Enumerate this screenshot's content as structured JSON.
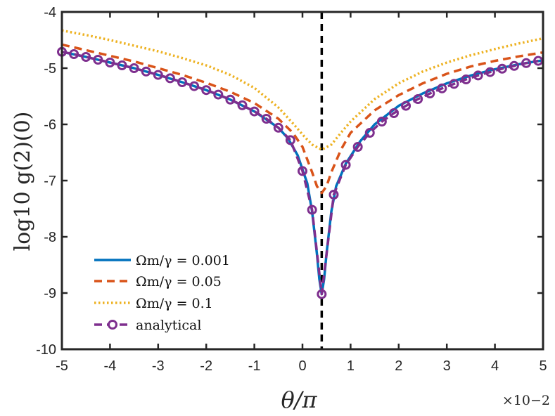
{
  "chart_data": {
    "type": "line",
    "title": "",
    "xlabel": "θ/π",
    "ylabel": "log10 g(2)(0)",
    "x_multiplier": "×10−2",
    "xlim": [
      -5,
      5
    ],
    "ylim": [
      -10,
      -4
    ],
    "xticks": [
      -5,
      -4,
      -3,
      -2,
      -1,
      0,
      1,
      2,
      3,
      4,
      5
    ],
    "yticks": [
      -10,
      -9,
      -8,
      -7,
      -6,
      -5,
      -4
    ],
    "xtick_labels": [
      "-5",
      "-4",
      "-3",
      "-2",
      "-1",
      "0",
      "1",
      "2",
      "3",
      "4",
      "5"
    ],
    "ytick_labels": [
      "-10",
      "-9",
      "-8",
      "-7",
      "-6",
      "-5",
      "-4"
    ],
    "grid": false,
    "legend_position": "bottom-left",
    "vline": {
      "x": 0.4,
      "style": "dashed",
      "color": "#000000"
    },
    "series": [
      {
        "name": "Ωm/γ = 0.001",
        "legend_label": "Ωm/γ = 0.001",
        "style": "solid",
        "color": "#0072BD",
        "x": [
          -5,
          -4.5,
          -4,
          -3.5,
          -3,
          -2.5,
          -2,
          -1.5,
          -1,
          -0.5,
          -0.3,
          -0.1,
          0.1,
          0.2,
          0.3,
          0.35,
          0.4,
          0.45,
          0.5,
          0.6,
          0.7,
          0.9,
          1.2,
          1.5,
          2,
          2.5,
          3,
          3.5,
          4,
          4.5,
          5
        ],
        "values": [
          -4.71,
          -4.8,
          -4.9,
          -5.0,
          -5.12,
          -5.25,
          -5.39,
          -5.56,
          -5.77,
          -6.06,
          -6.25,
          -6.55,
          -7.05,
          -7.55,
          -8.3,
          -8.75,
          -9.02,
          -8.75,
          -8.3,
          -7.55,
          -7.1,
          -6.7,
          -6.3,
          -6.0,
          -5.67,
          -5.45,
          -5.27,
          -5.13,
          -5.02,
          -4.93,
          -4.86
        ]
      },
      {
        "name": "Ωm/γ = 0.05",
        "legend_label": "Ωm/γ = 0.05",
        "style": "dashed",
        "color": "#D95319",
        "x": [
          -5,
          -4.5,
          -4,
          -3.5,
          -3,
          -2.5,
          -2,
          -1.5,
          -1,
          -0.5,
          -0.2,
          0,
          0.2,
          0.3,
          0.4,
          0.5,
          0.6,
          0.8,
          1,
          1.5,
          2,
          2.5,
          3,
          3.5,
          4,
          4.5,
          5
        ],
        "values": [
          -4.58,
          -4.68,
          -4.78,
          -4.88,
          -5.0,
          -5.12,
          -5.26,
          -5.42,
          -5.62,
          -5.9,
          -6.15,
          -6.4,
          -6.85,
          -7.1,
          -7.22,
          -7.1,
          -6.85,
          -6.45,
          -6.15,
          -5.75,
          -5.48,
          -5.27,
          -5.1,
          -4.97,
          -4.87,
          -4.79,
          -4.72
        ]
      },
      {
        "name": "Ωm/γ = 0.1",
        "legend_label": "Ωm/γ = 0.1",
        "style": "dotted",
        "color": "#EDB120",
        "x": [
          -5,
          -4.5,
          -4,
          -3.5,
          -3,
          -2.5,
          -2,
          -1.5,
          -1,
          -0.5,
          -0.2,
          0,
          0.2,
          0.4,
          0.6,
          0.8,
          1,
          1.5,
          2,
          2.5,
          3,
          3.5,
          4,
          4.5,
          5
        ],
        "values": [
          -4.33,
          -4.41,
          -4.5,
          -4.6,
          -4.7,
          -4.82,
          -4.95,
          -5.12,
          -5.35,
          -5.7,
          -5.98,
          -6.18,
          -6.36,
          -6.45,
          -6.36,
          -6.15,
          -5.95,
          -5.55,
          -5.27,
          -5.06,
          -4.9,
          -4.77,
          -4.66,
          -4.56,
          -4.47
        ]
      },
      {
        "name": "analytical",
        "legend_label": "analytical",
        "style": "dashed-circle",
        "color": "#7E2F8E",
        "x": [
          -5,
          -4.75,
          -4.5,
          -4.25,
          -4,
          -3.75,
          -3.5,
          -3.25,
          -3,
          -2.75,
          -2.5,
          -2.25,
          -2,
          -1.75,
          -1.5,
          -1.25,
          -1,
          -0.75,
          -0.5,
          -0.25,
          0,
          0.2,
          0.4,
          0.65,
          0.9,
          1.15,
          1.4,
          1.65,
          1.9,
          2.15,
          2.4,
          2.65,
          2.9,
          3.15,
          3.4,
          3.65,
          3.9,
          4.15,
          4.4,
          4.65,
          4.9
        ],
        "values": [
          -4.71,
          -4.75,
          -4.8,
          -4.85,
          -4.9,
          -4.95,
          -5.0,
          -5.06,
          -5.12,
          -5.18,
          -5.25,
          -5.32,
          -5.39,
          -5.47,
          -5.56,
          -5.66,
          -5.77,
          -5.9,
          -6.06,
          -6.28,
          -6.83,
          -7.52,
          -9.02,
          -7.25,
          -6.72,
          -6.4,
          -6.15,
          -5.95,
          -5.8,
          -5.67,
          -5.55,
          -5.45,
          -5.36,
          -5.28,
          -5.2,
          -5.13,
          -5.07,
          -5.01,
          -4.96,
          -4.91,
          -4.87
        ]
      }
    ]
  }
}
